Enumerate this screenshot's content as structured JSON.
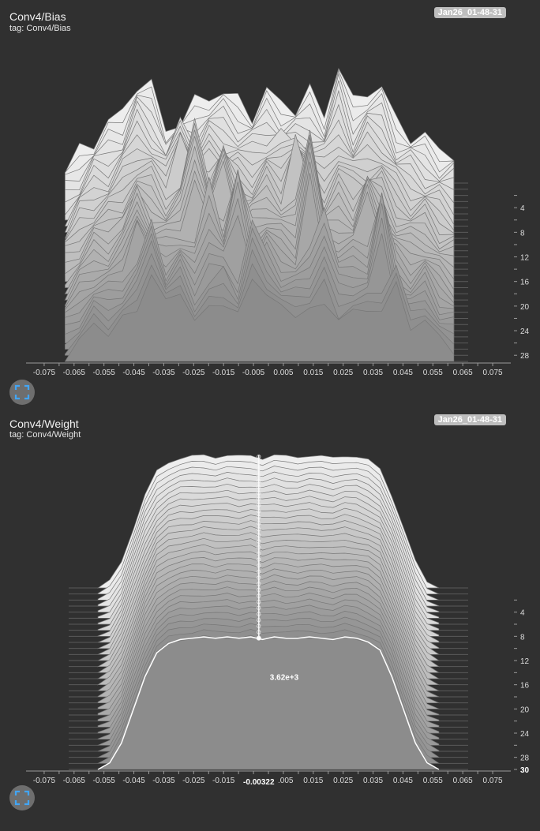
{
  "cards": [
    {
      "title": "Conv4/Bias",
      "tag": "tag: Conv4/Bias",
      "run": "Jan26_01-48-31",
      "expand_icon": "fullscreen-icon"
    },
    {
      "title": "Conv4/Weight",
      "tag": "tag: Conv4/Weight",
      "run": "Jan26_01-48-31",
      "expand_icon": "fullscreen-icon"
    }
  ],
  "chart_data": [
    {
      "type": "area",
      "layout": "offset-histogram",
      "xlim": [
        -0.08,
        0.08
      ],
      "x_ticks": [
        "-0.075",
        "-0.065",
        "-0.055",
        "-0.045",
        "-0.035",
        "-0.025",
        "-0.015",
        "-0.005",
        "0.005",
        "0.015",
        "0.025",
        "0.035",
        "0.045",
        "0.055",
        "0.065",
        "0.075"
      ],
      "x_tick_values": [
        -0.075,
        -0.065,
        -0.055,
        -0.045,
        -0.035,
        -0.025,
        -0.015,
        -0.005,
        0.005,
        0.015,
        0.025,
        0.035,
        0.045,
        0.055,
        0.065,
        0.075
      ],
      "y_ticks": [
        "4",
        "8",
        "12",
        "16",
        "20",
        "24",
        "28"
      ],
      "y_tick_values": [
        4,
        8,
        12,
        16,
        20,
        24,
        28
      ],
      "step_range": [
        0,
        29
      ],
      "data_x_range": [
        -0.068,
        0.062
      ],
      "bins": 28,
      "profile_last": [
        0.05,
        0.2,
        0.35,
        0.3,
        0.4,
        0.5,
        0.45,
        0.55,
        0.7,
        0.4,
        0.5,
        0.6,
        0.45,
        0.55,
        0.7,
        0.5,
        0.45,
        0.55,
        0.5,
        0.35,
        0.5,
        0.45,
        0.55,
        0.4,
        0.3,
        0.45,
        0.2,
        0.1
      ],
      "profile_first": [
        0.1,
        0.3,
        0.45,
        0.55,
        0.7,
        1.0,
        0.9,
        0.55,
        0.6,
        0.75,
        0.9,
        0.85,
        0.8,
        0.7,
        0.85,
        0.8,
        0.75,
        0.85,
        0.7,
        1.15,
        0.75,
        0.95,
        0.9,
        0.6,
        0.5,
        0.4,
        0.35,
        0.3
      ],
      "spikes": [
        [
          0.5,
          9,
          0.8
        ],
        [
          0.6,
          17,
          0.9
        ],
        [
          0.7,
          12,
          0.7
        ],
        [
          0.8,
          22,
          0.6
        ],
        [
          0.9,
          6,
          0.55
        ]
      ],
      "grid": false
    },
    {
      "type": "area",
      "layout": "offset-histogram",
      "xlim": [
        -0.08,
        0.08
      ],
      "x_ticks": [
        "-0.075",
        "-0.065",
        "-0.055",
        "-0.045",
        "-0.035",
        "-0.025",
        "-0.015",
        "-0.005",
        "0.005",
        "0.015",
        "0.025",
        "0.035",
        "0.045",
        "0.055",
        "0.065",
        "0.075"
      ],
      "x_tick_values": [
        -0.075,
        -0.065,
        -0.055,
        -0.045,
        -0.035,
        -0.025,
        -0.015,
        -0.005,
        0.005,
        0.015,
        0.025,
        0.035,
        0.045,
        0.055,
        0.065,
        0.075
      ],
      "y_ticks": [
        "4",
        "8",
        "12",
        "16",
        "20",
        "24",
        "28"
      ],
      "y_tick_values": [
        4,
        8,
        12,
        16,
        20,
        24,
        28
      ],
      "step_range": [
        0,
        30
      ],
      "data_x_range": [
        -0.057,
        0.057
      ],
      "bins": 30,
      "plateau": [
        0.0,
        0.05,
        0.2,
        0.45,
        0.7,
        0.88,
        0.95,
        0.98,
        0.99,
        1.0,
        0.99,
        1.0,
        0.99,
        1.0,
        0.98,
        1.0,
        0.99,
        0.99,
        1.0,
        0.99,
        0.98,
        1.0,
        0.99,
        0.96,
        0.9,
        0.7,
        0.45,
        0.2,
        0.05,
        0.0
      ],
      "hover": {
        "x_label": "-0.00322",
        "value_label": "3.62e+3",
        "step_label": "30",
        "x": -0.00322,
        "value": 3620,
        "step": 30
      },
      "grid": false
    }
  ]
}
